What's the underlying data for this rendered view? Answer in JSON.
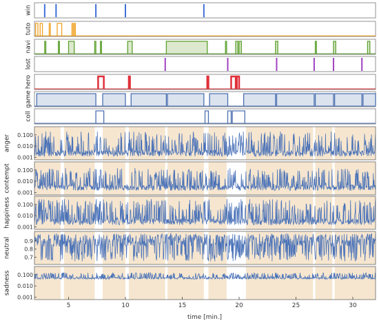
{
  "chart_data": {
    "type": "line",
    "xlabel": "time [min.]",
    "xlim": [
      2,
      32
    ],
    "xticks": [
      "5",
      "10",
      "15",
      "20",
      "25",
      "30"
    ],
    "colors": {
      "win": "#3f6fd8",
      "tuto": "#f0a020",
      "navi": "#5aa02c",
      "navi_fill": "#dde9cf",
      "lost": "#a040c0",
      "hero": "#e0303a",
      "game": "#4a6fb0",
      "game_fill": "#dbe3ef",
      "coll": "#4a6fb0",
      "line": "#4a72b8",
      "emotion_bg": "#f6e6cf"
    },
    "event_tracks": [
      {
        "name": "win",
        "style": "ticks",
        "events": [
          2.9,
          3.9,
          7.4,
          10.0,
          16.9
        ]
      },
      {
        "name": "tuto",
        "style": "pulses",
        "intervals": [
          [
            2.1,
            2.3
          ],
          [
            2.5,
            2.7
          ],
          [
            3.3,
            3.4
          ],
          [
            4.0,
            4.4
          ],
          [
            5.3,
            5.4
          ],
          [
            5.5,
            5.6
          ]
        ]
      },
      {
        "name": "navi",
        "style": "pulses",
        "intervals": [
          [
            2.9,
            3.0
          ],
          [
            4.1,
            4.2
          ],
          [
            5.0,
            5.5
          ],
          [
            7.3,
            7.4
          ],
          [
            7.8,
            7.9
          ],
          [
            10.2,
            10.6
          ],
          [
            13.6,
            17.2
          ],
          [
            18.8,
            18.9
          ],
          [
            19.7,
            19.9
          ],
          [
            20.0,
            20.2
          ],
          [
            23.2,
            23.4
          ],
          [
            26.7,
            26.8
          ],
          [
            28.3,
            28.5
          ],
          [
            31.3,
            31.5
          ]
        ]
      },
      {
        "name": "lost",
        "style": "ticks",
        "events": [
          13.5,
          19.0,
          23.3,
          26.6,
          28.3,
          30.8
        ]
      },
      {
        "name": "hero",
        "style": "pulses",
        "intervals": [
          [
            7.6,
            8.1
          ],
          [
            10.3,
            10.4
          ],
          [
            17.2,
            17.3
          ],
          [
            19.3,
            19.7
          ],
          [
            19.8,
            20.0
          ]
        ]
      },
      {
        "name": "game",
        "style": "pulses",
        "intervals": [
          [
            2.2,
            7.4
          ],
          [
            8.0,
            10.0
          ],
          [
            10.5,
            13.6
          ],
          [
            13.7,
            16.9
          ],
          [
            17.4,
            19.0
          ],
          [
            20.4,
            23.2
          ],
          [
            23.3,
            26.6
          ],
          [
            26.7,
            28.3
          ],
          [
            28.4,
            30.8
          ],
          [
            30.9,
            32.0
          ]
        ]
      },
      {
        "name": "coll",
        "style": "pulses",
        "intervals": [
          [
            7.4,
            8.1
          ],
          [
            17.0,
            17.3
          ],
          [
            19.0,
            19.3
          ],
          [
            19.4,
            20.5
          ]
        ]
      }
    ],
    "emotion_background": [
      [
        2.0,
        4.3
      ],
      [
        4.6,
        7.3
      ],
      [
        8.0,
        10.0
      ],
      [
        10.3,
        13.5
      ],
      [
        13.7,
        16.9
      ],
      [
        17.3,
        18.9
      ],
      [
        20.6,
        26.5
      ],
      [
        26.7,
        28.2
      ],
      [
        28.4,
        32.0
      ]
    ],
    "emotion_tracks": [
      {
        "name": "anger",
        "scale": "log",
        "yticks": [
          "0.100",
          "0.010",
          "0.001"
        ],
        "range": [
          0.0007,
          0.4
        ],
        "baseline": 0.0012,
        "peak": 0.2,
        "seed": 11
      },
      {
        "name": "contempt",
        "scale": "log",
        "yticks": [
          "0.100",
          "0.010",
          "0.001"
        ],
        "range": [
          0.0007,
          0.4
        ],
        "baseline": 0.0015,
        "peak": 0.15,
        "seed": 23
      },
      {
        "name": "happiness",
        "scale": "log",
        "yticks": [
          "0.100",
          "0.010",
          "0.001"
        ],
        "range": [
          0.0007,
          0.4
        ],
        "baseline": 0.0015,
        "peak": 0.3,
        "seed": 37
      },
      {
        "name": "neutral",
        "scale": "linear",
        "yticks": [
          "0.9",
          "0.8",
          "0.7"
        ],
        "range": [
          0.62,
          1.0
        ],
        "baseline": 0.88,
        "peak": 0.98,
        "seed": 51
      },
      {
        "name": "sadness",
        "scale": "log",
        "yticks": [
          "0.100",
          "0.010",
          "0.001"
        ],
        "range": [
          0.0007,
          0.4
        ],
        "baseline": 0.04,
        "peak": 0.15,
        "seed": 67
      }
    ]
  }
}
